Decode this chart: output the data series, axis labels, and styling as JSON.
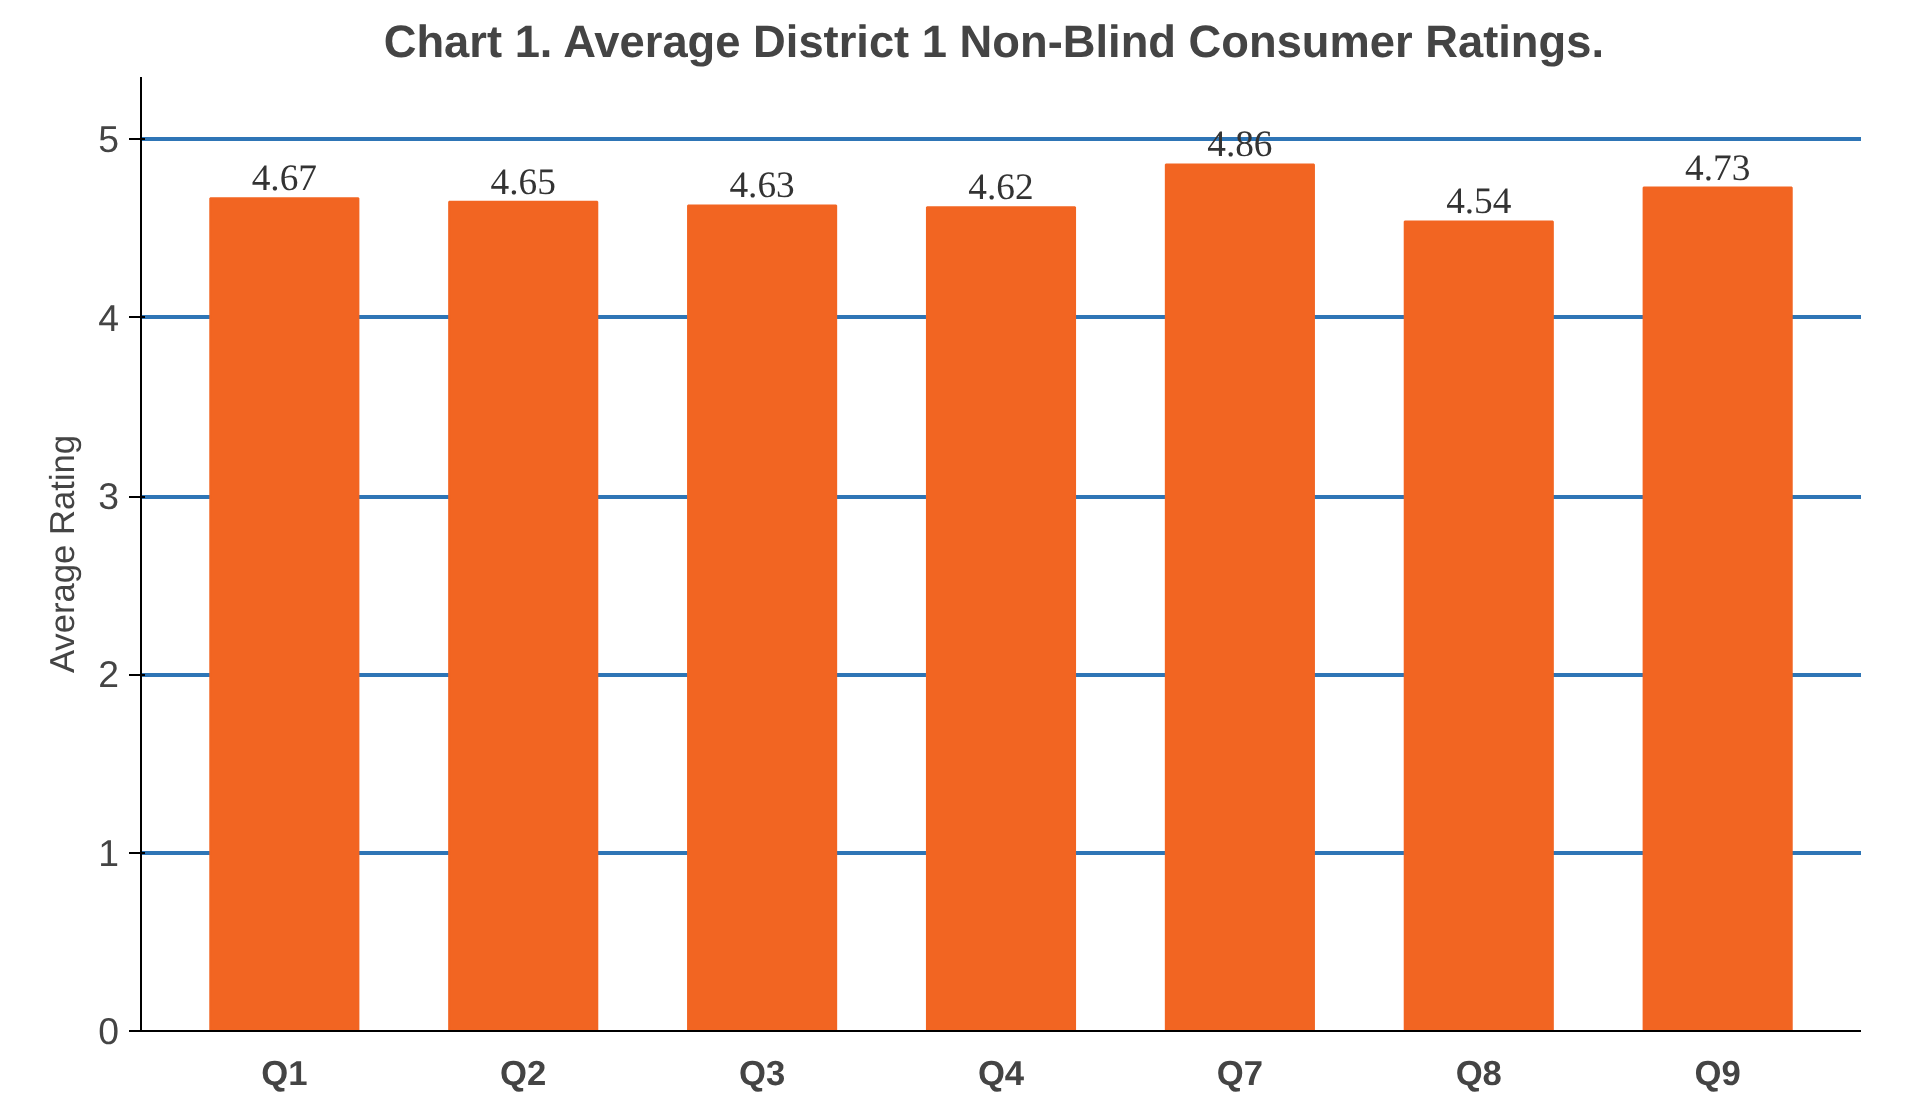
{
  "chart_data": {
    "type": "bar",
    "title": "Chart 1.  Average District 1 Non-Blind Consumer Ratings.",
    "ylabel": "Average Rating",
    "categories": [
      "Q1",
      "Q2",
      "Q3",
      "Q4",
      "Q7",
      "Q8",
      "Q9"
    ],
    "values": [
      4.67,
      4.65,
      4.63,
      4.62,
      4.86,
      4.54,
      4.73
    ],
    "color": "#f26522",
    "ylim": [
      0,
      5.35
    ],
    "yticks": [
      0,
      1,
      2,
      3,
      4,
      5
    ],
    "grid": "y",
    "data_labels": true
  }
}
